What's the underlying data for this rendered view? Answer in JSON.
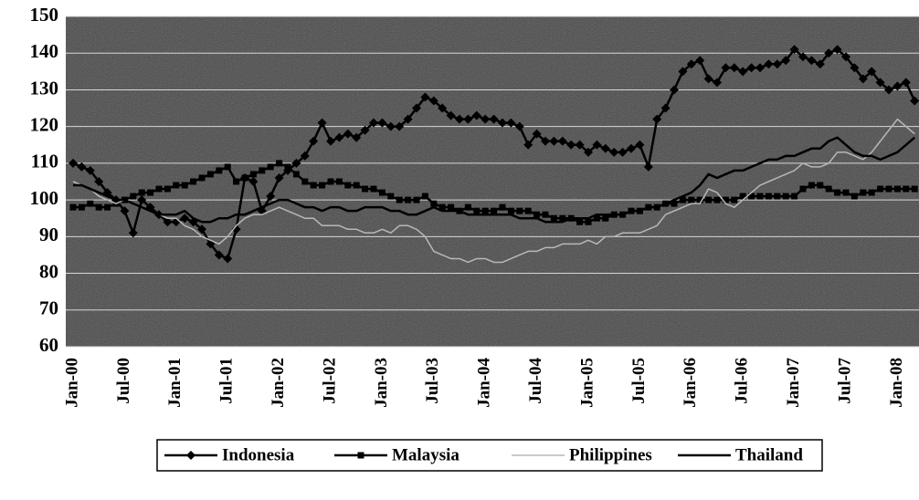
{
  "chart_data": {
    "type": "line",
    "categories": [
      "Jan-00",
      null,
      null,
      null,
      null,
      null,
      "Jul-00",
      null,
      null,
      null,
      null,
      null,
      "Jan-01",
      null,
      null,
      null,
      null,
      null,
      "Jul-01",
      null,
      null,
      null,
      null,
      null,
      "Jan-02",
      null,
      null,
      null,
      null,
      null,
      "Jul-02",
      null,
      null,
      null,
      null,
      null,
      "Jan-03",
      null,
      null,
      null,
      null,
      null,
      "Jul-03",
      null,
      null,
      null,
      null,
      null,
      "Jan-04",
      null,
      null,
      null,
      null,
      null,
      "Jul-04",
      null,
      null,
      null,
      null,
      null,
      "Jan-05",
      null,
      null,
      null,
      null,
      null,
      "Jul-05",
      null,
      null,
      null,
      null,
      null,
      "Jan-06",
      null,
      null,
      null,
      null,
      null,
      "Jul-06",
      null,
      null,
      null,
      null,
      null,
      "Jan-07",
      null,
      null,
      null,
      null,
      null,
      "Jul-07",
      null,
      null,
      null,
      null,
      null,
      "Jan-08",
      null,
      null
    ],
    "series": [
      {
        "name": "Indonesia",
        "color": "#000000",
        "marker": "diamond",
        "values": [
          110,
          109,
          108,
          105,
          102,
          100,
          97,
          91,
          100,
          98,
          96,
          94,
          94,
          95,
          94,
          92,
          88,
          85,
          84,
          92,
          106,
          105,
          97,
          101,
          106,
          108,
          110,
          112,
          116,
          121,
          116,
          117,
          118,
          117,
          119,
          121,
          121,
          120,
          120,
          122,
          125,
          128,
          127,
          125,
          123,
          122,
          122,
          123,
          122,
          122,
          121,
          121,
          120,
          115,
          118,
          116,
          116,
          116,
          115,
          115,
          113,
          115,
          114,
          113,
          113,
          114,
          115,
          109,
          122,
          125,
          130,
          135,
          137,
          138,
          133,
          132,
          136,
          136,
          135,
          136,
          136,
          137,
          137,
          138,
          141,
          139,
          138,
          137,
          140,
          141,
          139,
          136,
          133,
          135,
          132,
          130,
          131,
          132,
          127
        ]
      },
      {
        "name": "Malaysia",
        "color": "#000000",
        "marker": "square",
        "values": [
          98,
          98,
          99,
          98,
          98,
          99,
          100,
          101,
          102,
          102,
          103,
          103,
          104,
          104,
          105,
          106,
          107,
          108,
          109,
          105,
          106,
          107,
          108,
          109,
          110,
          109,
          107,
          105,
          104,
          104,
          105,
          105,
          104,
          104,
          103,
          103,
          102,
          101,
          100,
          100,
          100,
          101,
          99,
          98,
          98,
          97,
          98,
          97,
          97,
          97,
          98,
          97,
          97,
          97,
          96,
          96,
          95,
          95,
          95,
          94,
          94,
          95,
          95,
          96,
          96,
          97,
          97,
          98,
          98,
          99,
          99,
          100,
          100,
          100,
          100,
          100,
          100,
          100,
          101,
          101,
          101,
          101,
          101,
          101,
          101,
          103,
          104,
          104,
          103,
          102,
          102,
          101,
          102,
          102,
          103,
          103,
          103,
          103,
          103
        ]
      },
      {
        "name": "Philippines",
        "color": "#b8b8b8",
        "marker": null,
        "values": [
          105,
          104,
          103,
          101,
          100,
          99,
          100,
          99,
          98,
          97,
          96,
          95,
          95,
          93,
          92,
          90,
          89,
          88,
          90,
          93,
          95,
          96,
          96,
          97,
          98,
          97,
          96,
          95,
          95,
          93,
          93,
          93,
          92,
          92,
          91,
          91,
          92,
          91,
          93,
          93,
          92,
          90,
          86,
          85,
          84,
          84,
          83,
          84,
          84,
          83,
          83,
          84,
          85,
          86,
          86,
          87,
          87,
          88,
          88,
          88,
          89,
          88,
          90,
          90,
          91,
          91,
          91,
          92,
          93,
          96,
          97,
          98,
          99,
          99,
          103,
          102,
          99,
          98,
          100,
          102,
          104,
          105,
          106,
          107,
          108,
          110,
          109,
          109,
          110,
          113,
          113,
          112,
          111,
          113,
          116,
          119,
          122,
          120,
          118
        ]
      },
      {
        "name": "Thailand",
        "color": "#000000",
        "marker": null,
        "values": [
          104,
          104,
          103,
          102,
          101,
          100,
          100,
          99,
          98,
          97,
          96,
          96,
          96,
          97,
          95,
          94,
          94,
          95,
          95,
          96,
          96,
          97,
          98,
          99,
          100,
          100,
          99,
          98,
          98,
          97,
          98,
          98,
          97,
          97,
          98,
          98,
          98,
          97,
          97,
          96,
          96,
          97,
          98,
          97,
          97,
          97,
          96,
          96,
          96,
          96,
          96,
          96,
          95,
          95,
          95,
          94,
          94,
          94,
          95,
          95,
          95,
          96,
          96,
          96,
          96,
          97,
          97,
          98,
          98,
          99,
          100,
          101,
          102,
          104,
          107,
          106,
          107,
          108,
          108,
          109,
          110,
          111,
          111,
          112,
          112,
          113,
          114,
          114,
          116,
          117,
          115,
          113,
          112,
          112,
          111,
          112,
          113,
          115,
          117
        ]
      }
    ],
    "ylim": [
      60,
      150
    ],
    "yticks": [
      60,
      70,
      80,
      90,
      100,
      110,
      120,
      130,
      140,
      150
    ],
    "grid": true,
    "legend": "bottom"
  }
}
